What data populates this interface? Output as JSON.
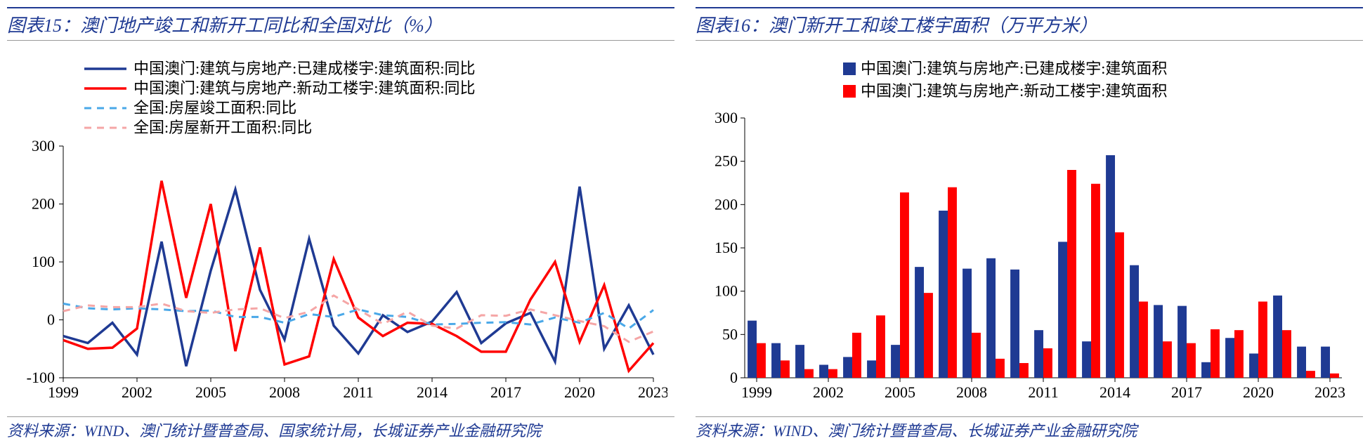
{
  "chart15": {
    "title": "图表15：澳门地产竣工和新开工同比和全国对比（%）",
    "source": "资料来源：WIND、澳门统计暨普查局、国家统计局，长城证券产业金融研究院",
    "type": "line",
    "title_color": "#1f3a93",
    "title_fontsize": 26,
    "background_color": "#ffffff",
    "axis_fontsize": 22,
    "legend_fontsize": 22,
    "xlim": [
      1999,
      2023
    ],
    "ylim": [
      -100,
      300
    ],
    "xtick_years": [
      1999,
      2002,
      2005,
      2008,
      2011,
      2014,
      2017,
      2020,
      2023
    ],
    "yticks": [
      -100,
      0,
      100,
      200,
      300
    ],
    "line_width_solid": 3.5,
    "line_width_dashed": 3,
    "series": [
      {
        "label": "中国澳门:建筑与房地产:已建成楼宇:建筑面积:同比",
        "color": "#1f3a93",
        "dashed": false,
        "x": [
          1999,
          2000,
          2001,
          2002,
          2003,
          2004,
          2005,
          2006,
          2007,
          2008,
          2009,
          2010,
          2011,
          2012,
          2013,
          2014,
          2015,
          2016,
          2017,
          2018,
          2019,
          2020,
          2021,
          2022,
          2023
        ],
        "y": [
          -28,
          -40,
          -5,
          -60,
          135,
          -80,
          85,
          225,
          52,
          -34,
          140,
          -10,
          -58,
          8,
          -21,
          -3,
          48,
          -40,
          -6,
          12,
          -72,
          230,
          -50,
          25,
          -60
        ]
      },
      {
        "label": "中国澳门:建筑与房地产:新动工楼宇:建筑面积:同比",
        "color": "#ff0000",
        "dashed": false,
        "x": [
          1999,
          2000,
          2001,
          2002,
          2003,
          2004,
          2005,
          2006,
          2007,
          2008,
          2009,
          2010,
          2011,
          2012,
          2013,
          2014,
          2015,
          2016,
          2017,
          2018,
          2019,
          2020,
          2021,
          2022,
          2023
        ],
        "y": [
          -35,
          -50,
          -48,
          -15,
          240,
          38,
          200,
          -54,
          125,
          -77,
          -63,
          105,
          4,
          -28,
          -5,
          -7,
          -28,
          -55,
          -55,
          35,
          100,
          -38,
          60,
          -88,
          -40
        ]
      },
      {
        "label": "全国:房屋竣工面积:同比",
        "color": "#4aa8e8",
        "dashed": true,
        "x": [
          1999,
          2000,
          2001,
          2002,
          2003,
          2004,
          2005,
          2006,
          2007,
          2008,
          2009,
          2010,
          2011,
          2012,
          2013,
          2014,
          2015,
          2016,
          2017,
          2018,
          2019,
          2020,
          2021,
          2022,
          2023
        ],
        "y": [
          28,
          20,
          18,
          20,
          18,
          15,
          16,
          5,
          5,
          -5,
          10,
          5,
          18,
          8,
          5,
          -8,
          -7,
          -5,
          -4,
          -8,
          4,
          -5,
          12,
          -15,
          17
        ]
      },
      {
        "label": "全国:房屋新开工面积:同比",
        "color": "#f5a6a6",
        "dashed": true,
        "x": [
          1999,
          2000,
          2001,
          2002,
          2003,
          2004,
          2005,
          2006,
          2007,
          2008,
          2009,
          2010,
          2011,
          2012,
          2013,
          2014,
          2015,
          2016,
          2017,
          2018,
          2019,
          2020,
          2021,
          2022,
          2023
        ],
        "y": [
          15,
          25,
          22,
          22,
          28,
          15,
          12,
          18,
          20,
          3,
          14,
          42,
          18,
          -7,
          14,
          -10,
          -15,
          8,
          7,
          18,
          8,
          -2,
          -11,
          -38,
          -20
        ]
      }
    ]
  },
  "chart16": {
    "title": "图表16：澳门新开工和竣工楼宇面积（万平方米）",
    "source": "资料来源：WIND、澳门统计暨普查局、长城证券产业金融研究院",
    "type": "bar",
    "title_color": "#1f3a93",
    "title_fontsize": 26,
    "background_color": "#ffffff",
    "axis_fontsize": 22,
    "legend_fontsize": 22,
    "xlim": [
      1999,
      2023
    ],
    "ylim": [
      0,
      300
    ],
    "yticks": [
      0,
      50,
      100,
      150,
      200,
      250,
      300
    ],
    "xtick_years": [
      1999,
      2002,
      2005,
      2008,
      2011,
      2014,
      2017,
      2020,
      2023
    ],
    "bar_width": 0.38,
    "series": [
      {
        "label": "中国澳门:建筑与房地产:已建成楼宇:建筑面积",
        "color": "#1f3a93",
        "x": [
          1999,
          2000,
          2001,
          2002,
          2003,
          2004,
          2005,
          2006,
          2007,
          2008,
          2009,
          2010,
          2011,
          2012,
          2013,
          2014,
          2015,
          2016,
          2017,
          2018,
          2019,
          2020,
          2021,
          2022,
          2023
        ],
        "y": [
          66,
          40,
          38,
          15,
          24,
          20,
          38,
          128,
          193,
          126,
          138,
          125,
          55,
          157,
          42,
          257,
          130,
          84,
          83,
          18,
          46,
          28,
          95,
          36,
          36
        ]
      },
      {
        "label": "中国澳门:建筑与房地产:新动工楼宇:建筑面积",
        "color": "#ff0000",
        "x": [
          1999,
          2000,
          2001,
          2002,
          2003,
          2004,
          2005,
          2006,
          2007,
          2008,
          2009,
          2010,
          2011,
          2012,
          2013,
          2014,
          2015,
          2016,
          2017,
          2018,
          2019,
          2020,
          2021,
          2022,
          2023
        ],
        "y": [
          40,
          20,
          10,
          10,
          52,
          72,
          214,
          98,
          220,
          52,
          22,
          17,
          34,
          240,
          224,
          168,
          88,
          42,
          40,
          56,
          55,
          88,
          55,
          8,
          5
        ]
      }
    ]
  }
}
